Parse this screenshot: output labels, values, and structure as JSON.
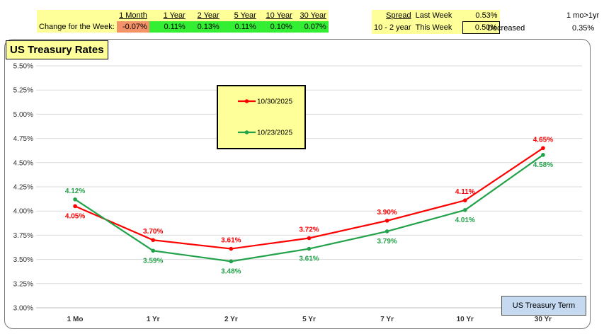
{
  "change_table": {
    "row_label": "Change for the Week:",
    "headers": [
      "1 Month",
      "1 Year",
      "2 Year",
      "5 Year",
      "10 Year",
      "30 Year"
    ],
    "values": [
      "-0.07%",
      "0.11%",
      "0.13%",
      "0.11%",
      "0.10%",
      "0.07%"
    ],
    "colors": {
      "negative": "#f4926a",
      "positive": "#33ee33"
    }
  },
  "spread_table": {
    "spread_label": "Spread",
    "last_week_label": "Last Week",
    "last_week_value": "0.53%",
    "pair_label": "10 - 2 year",
    "this_week_label": "This Week",
    "this_week_value": "0.50%",
    "direction": "Decreased",
    "extra_label": "1 mo>1yr",
    "extra_value": "0.35%"
  },
  "chart_data": {
    "type": "line",
    "title": "US Treasury Rates",
    "xlabel": "US Treasury Term",
    "categories": [
      "1 Mo",
      "1 Yr",
      "2 Yr",
      "5 Yr",
      "7 Yr",
      "10 Yr",
      "30 Yr"
    ],
    "ylim": [
      3.0,
      5.5
    ],
    "yticks": [
      "3.00%",
      "3.25%",
      "3.50%",
      "3.75%",
      "4.00%",
      "4.25%",
      "4.50%",
      "4.75%",
      "5.00%",
      "5.25%",
      "5.50%"
    ],
    "grid": true,
    "legend_position": "top-center",
    "series": [
      {
        "name": "10/30/2025",
        "color": "#ff0000",
        "values": [
          4.05,
          3.7,
          3.61,
          3.72,
          3.9,
          4.11,
          4.65
        ],
        "labels": [
          "4.05%",
          "3.70%",
          "3.61%",
          "3.72%",
          "3.90%",
          "4.11%",
          "4.65%"
        ]
      },
      {
        "name": "10/23/2025",
        "color": "#22a24a",
        "values": [
          4.12,
          3.59,
          3.48,
          3.61,
          3.79,
          4.01,
          4.58
        ],
        "labels": [
          "4.12%",
          "3.59%",
          "3.48%",
          "3.61%",
          "3.79%",
          "4.01%",
          "4.58%"
        ]
      }
    ]
  }
}
